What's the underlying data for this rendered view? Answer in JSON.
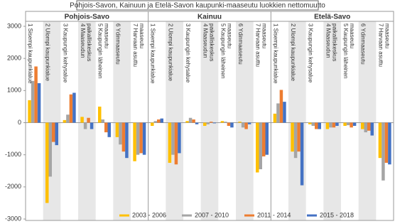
{
  "chart_data": {
    "type": "bar",
    "title": "Pohjois-Savon, Kainuun ja Etelä-Savon kaupunki-maaseutu luokkien nettomuutto",
    "panels": [
      "Pohjois-Savo",
      "Kainuu",
      "Etelä-Savo"
    ],
    "categories": [
      "1 Sisempi kaupunkialue",
      "2 Ulompi kaupunkialue",
      "3 Kaupungin kehysalue",
      "4 Maaseudun paikalliskeskus",
      "5 Kaupungin läheinen maaseutu",
      "6 Ydinmaaseutu",
      "7 Harvaan asuttu maaseutu"
    ],
    "series": [
      {
        "name": "2003 - 2006",
        "color": "#ffc000",
        "values": [
          [
            700,
            -2500,
            80,
            180,
            500,
            -450,
            -1200
          ],
          [
            -100,
            -1250,
            50,
            -100,
            50,
            30,
            -1550
          ],
          [
            280,
            -900,
            -50,
            -200,
            -100,
            -200,
            -1100
          ]
        ]
      },
      {
        "name": "2007 - 2010",
        "color": "#a5a5a5",
        "values": [
          [
            1300,
            -1680,
            250,
            -200,
            100,
            -680,
            -1000
          ],
          [
            50,
            -1000,
            150,
            -50,
            30,
            -150,
            -1450
          ],
          [
            600,
            -1100,
            -100,
            -150,
            -80,
            -300,
            -1800
          ]
        ]
      },
      {
        "name": "2011 - 2014",
        "color": "#ed7d31",
        "values": [
          [
            1750,
            -600,
            880,
            150,
            -300,
            -900,
            -950
          ],
          [
            100,
            -1300,
            100,
            30,
            -100,
            -200,
            -1050
          ],
          [
            1020,
            -900,
            -200,
            -150,
            -150,
            -250,
            -1250
          ]
        ]
      },
      {
        "name": "2015 - 2018",
        "color": "#4472c4",
        "values": [
          [
            1230,
            -700,
            930,
            -200,
            -450,
            -1100,
            -1000
          ],
          [
            130,
            -950,
            -50,
            -20,
            -150,
            -50,
            -1000
          ],
          [
            650,
            -1950,
            -200,
            -100,
            -100,
            -400,
            -1300
          ]
        ]
      }
    ],
    "ylim": [
      -3000,
      3000
    ],
    "yticks": [
      -3000,
      -2000,
      -1000,
      0,
      1000,
      2000,
      3000
    ],
    "grid": false
  }
}
